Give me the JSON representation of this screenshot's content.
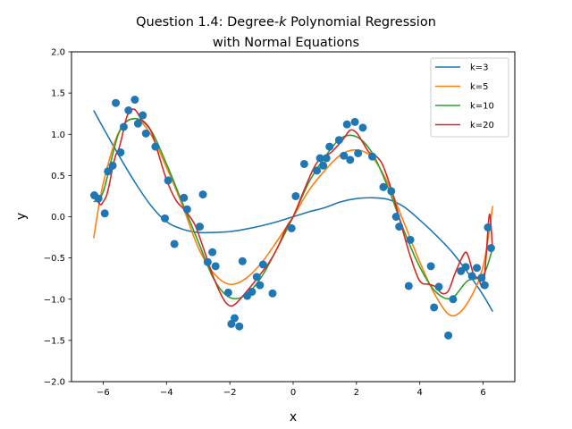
{
  "chart_data": {
    "type": "scatter",
    "title_line1_prefix": "Question 1.4: Degree-",
    "title_line1_italic": "k",
    "title_line1_suffix": " Polynomial Regression",
    "title_line2": "with Normal Equations",
    "xlabel": "x",
    "ylabel": "y",
    "xlim": [
      -7,
      7
    ],
    "ylim": [
      -2.0,
      2.0
    ],
    "xticks": [
      -6,
      -4,
      -2,
      0,
      2,
      4,
      6
    ],
    "xtick_labels": [
      "−6",
      "−4",
      "−2",
      "0",
      "2",
      "4",
      "6"
    ],
    "yticks": [
      -2.0,
      -1.5,
      -1.0,
      -0.5,
      0.0,
      0.5,
      1.0,
      1.5,
      2.0
    ],
    "ytick_labels": [
      "−2.0",
      "−1.5",
      "−1.0",
      "−0.5",
      "0.0",
      "0.5",
      "1.0",
      "1.5",
      "2.0"
    ],
    "grid": false,
    "legend_position": "top-right",
    "points_color": "#1f77b4",
    "points": [
      [
        -6.28,
        0.26
      ],
      [
        -6.15,
        0.22
      ],
      [
        -5.95,
        0.04
      ],
      [
        -5.85,
        0.55
      ],
      [
        -5.7,
        0.62
      ],
      [
        -5.6,
        1.38
      ],
      [
        -5.45,
        0.78
      ],
      [
        -5.35,
        1.09
      ],
      [
        -5.2,
        1.29
      ],
      [
        -5.0,
        1.42
      ],
      [
        -4.9,
        1.13
      ],
      [
        -4.75,
        1.23
      ],
      [
        -4.65,
        1.01
      ],
      [
        -4.35,
        0.85
      ],
      [
        -4.05,
        -0.02
      ],
      [
        -3.95,
        0.44
      ],
      [
        -3.75,
        -0.33
      ],
      [
        -3.45,
        0.23
      ],
      [
        -3.35,
        0.09
      ],
      [
        -2.95,
        -0.12
      ],
      [
        -2.85,
        0.27
      ],
      [
        -2.7,
        -0.55
      ],
      [
        -2.55,
        -0.43
      ],
      [
        -2.45,
        -0.6
      ],
      [
        -2.05,
        -0.92
      ],
      [
        -1.95,
        -1.3
      ],
      [
        -1.85,
        -1.23
      ],
      [
        -1.7,
        -1.33
      ],
      [
        -1.6,
        -0.54
      ],
      [
        -1.45,
        -0.96
      ],
      [
        -1.3,
        -0.91
      ],
      [
        -1.15,
        -0.73
      ],
      [
        -1.05,
        -0.83
      ],
      [
        -0.95,
        -0.58
      ],
      [
        -0.65,
        -0.93
      ],
      [
        -0.05,
        -0.14
      ],
      [
        0.08,
        0.25
      ],
      [
        0.35,
        0.64
      ],
      [
        0.75,
        0.56
      ],
      [
        0.85,
        0.71
      ],
      [
        0.95,
        0.62
      ],
      [
        1.05,
        0.71
      ],
      [
        1.15,
        0.85
      ],
      [
        1.45,
        0.93
      ],
      [
        1.6,
        0.74
      ],
      [
        1.7,
        1.12
      ],
      [
        1.8,
        0.69
      ],
      [
        1.95,
        1.15
      ],
      [
        2.05,
        0.77
      ],
      [
        2.2,
        1.08
      ],
      [
        2.5,
        0.73
      ],
      [
        2.85,
        0.36
      ],
      [
        3.1,
        0.31
      ],
      [
        3.25,
        0.0
      ],
      [
        3.35,
        -0.12
      ],
      [
        3.65,
        -0.84
      ],
      [
        3.7,
        -0.28
      ],
      [
        4.35,
        -0.6
      ],
      [
        4.45,
        -1.1
      ],
      [
        4.6,
        -0.85
      ],
      [
        4.9,
        -1.44
      ],
      [
        5.05,
        -1.0
      ],
      [
        5.3,
        -0.66
      ],
      [
        5.45,
        -0.61
      ],
      [
        5.65,
        -0.72
      ],
      [
        5.8,
        -0.62
      ],
      [
        5.95,
        -0.74
      ],
      [
        6.05,
        -0.83
      ],
      [
        6.15,
        -0.13
      ],
      [
        6.25,
        -0.38
      ]
    ],
    "series": [
      {
        "name": "k=3",
        "color": "#1f77b4"
      },
      {
        "name": "k=5",
        "color": "#ff7f0e"
      },
      {
        "name": "k=10",
        "color": "#2ca02c"
      },
      {
        "name": "k=20",
        "color": "#d62728"
      }
    ],
    "curve_x": [
      -6.3,
      -6.0,
      -5.5,
      -5.0,
      -4.5,
      -4.0,
      -3.5,
      -3.0,
      -2.5,
      -2.0,
      -1.5,
      -1.0,
      -0.5,
      0.0,
      0.5,
      1.0,
      1.5,
      2.0,
      2.5,
      3.0,
      3.5,
      4.0,
      4.5,
      5.0,
      5.5,
      6.0,
      6.3
    ],
    "curve_y": [
      [
        1.29,
        1.08,
        0.74,
        0.42,
        0.14,
        -0.06,
        -0.15,
        -0.19,
        -0.19,
        -0.18,
        -0.15,
        -0.11,
        -0.06,
        0.0,
        0.06,
        0.11,
        0.18,
        0.22,
        0.23,
        0.21,
        0.12,
        -0.04,
        -0.22,
        -0.42,
        -0.67,
        -0.95,
        -1.15
      ],
      [
        -0.26,
        0.4,
        1.03,
        1.19,
        1.0,
        0.6,
        0.14,
        -0.37,
        -0.69,
        -0.82,
        -0.75,
        -0.56,
        -0.29,
        0.0,
        0.32,
        0.56,
        0.75,
        0.81,
        0.72,
        0.4,
        -0.07,
        -0.55,
        -0.96,
        -1.2,
        -1.05,
        -0.6,
        0.13
      ],
      [
        0.18,
        0.3,
        1.02,
        1.19,
        1.05,
        0.64,
        0.17,
        -0.3,
        -0.76,
        -0.98,
        -0.95,
        -0.73,
        -0.38,
        0.0,
        0.42,
        0.72,
        0.95,
        0.97,
        0.77,
        0.35,
        -0.17,
        -0.61,
        -0.91,
        -0.99,
        -0.78,
        -0.71,
        -0.38
      ]
    ],
    "k20_x": [
      -6.3,
      -6.1,
      -6.0,
      -5.9,
      -5.8,
      -5.7,
      -5.6,
      -5.5,
      -5.4,
      -5.3,
      -5.2,
      -5.1,
      -5.0,
      -4.9,
      -4.8,
      -4.7,
      -4.5,
      -4.3,
      -4.0,
      -3.7,
      -3.4,
      -3.1,
      -2.8,
      -2.5,
      -2.2,
      -2.0,
      -1.8,
      -1.5,
      -1.2,
      -1.0,
      -0.8,
      -0.5,
      -0.2,
      0.0,
      0.3,
      0.6,
      0.8,
      1.0,
      1.2,
      1.4,
      1.6,
      1.8,
      2.0,
      2.2,
      2.4,
      2.6,
      2.8,
      3.0,
      3.2,
      3.4,
      3.7,
      4.0,
      4.3,
      4.5,
      4.7,
      4.9,
      5.1,
      5.3,
      5.45,
      5.55,
      5.7,
      5.85,
      6.0,
      6.1,
      6.2,
      6.3
    ],
    "k20_y": [
      0.27,
      0.15,
      0.18,
      0.25,
      0.4,
      0.6,
      0.75,
      0.83,
      0.98,
      1.15,
      1.26,
      1.3,
      1.3,
      1.25,
      1.18,
      1.15,
      1.05,
      0.82,
      0.45,
      0.2,
      0.07,
      -0.1,
      -0.42,
      -0.75,
      -1.0,
      -1.08,
      -1.05,
      -0.92,
      -0.78,
      -0.68,
      -0.58,
      -0.38,
      -0.12,
      0.0,
      0.28,
      0.55,
      0.68,
      0.73,
      0.78,
      0.86,
      0.95,
      1.05,
      1.02,
      0.9,
      0.78,
      0.74,
      0.65,
      0.45,
      0.2,
      -0.08,
      -0.48,
      -0.78,
      -0.82,
      -0.85,
      -0.93,
      -0.9,
      -0.7,
      -0.52,
      -0.43,
      -0.5,
      -0.7,
      -0.75,
      -0.85,
      -0.45,
      0.03,
      -0.4
    ]
  }
}
